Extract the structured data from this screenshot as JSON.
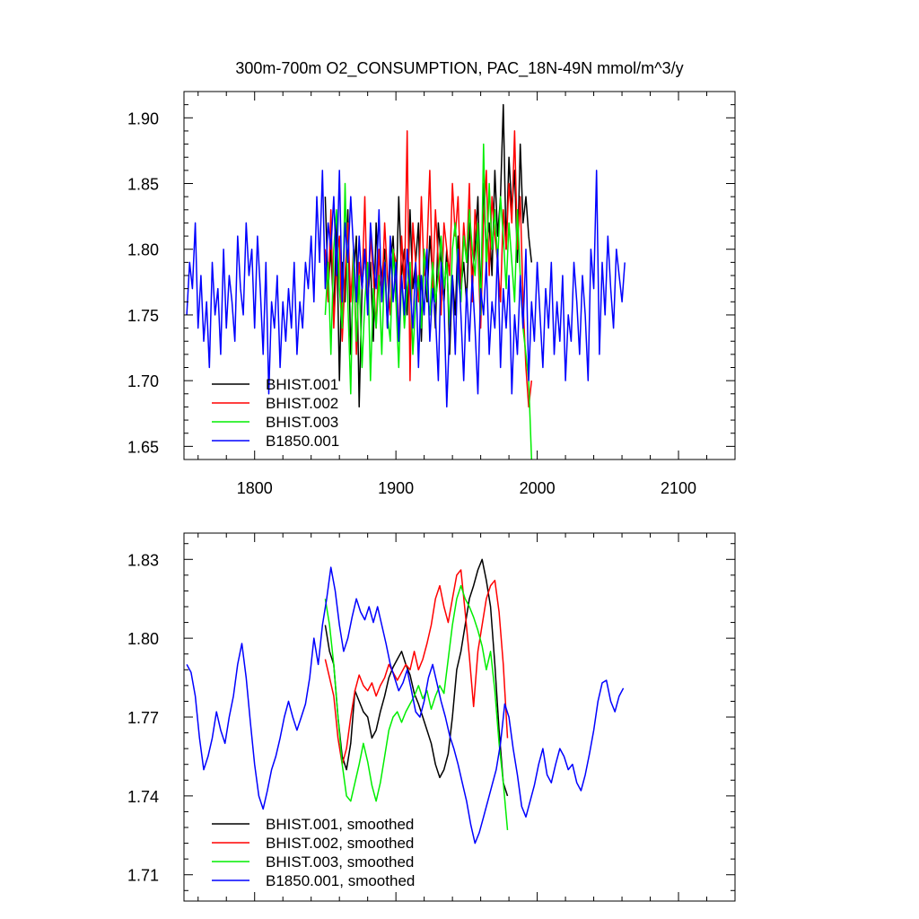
{
  "figure": {
    "title": "300m-700m O2_CONSUMPTION, PAC_18N-49N  mmol/m^3/y"
  },
  "chart_data": [
    {
      "type": "line",
      "title": "300m-700m O2_CONSUMPTION, PAC_18N-49N  mmol/m^3/y",
      "xlabel": "",
      "ylabel": "",
      "xlim": [
        1750,
        2140
      ],
      "ylim": [
        1.64,
        1.92
      ],
      "xticks": [
        1800,
        1900,
        2000,
        2100
      ],
      "xtick_labels": [
        "1800",
        "1900",
        "2000",
        "2100"
      ],
      "yticks": [
        1.65,
        1.7,
        1.75,
        1.8,
        1.85,
        1.9
      ],
      "ytick_labels": [
        "1.65",
        "1.70",
        "1.75",
        "1.80",
        "1.85",
        "1.90"
      ],
      "grid": false,
      "legend_position": "bottom-left",
      "series": [
        {
          "name": "BHIST.001",
          "color": "#000000",
          "x_start": 1850,
          "x_step": 2,
          "values": [
            1.84,
            1.77,
            1.8,
            1.75,
            1.82,
            1.7,
            1.79,
            1.76,
            1.83,
            1.72,
            1.78,
            1.81,
            1.68,
            1.77,
            1.8,
            1.76,
            1.79,
            1.73,
            1.82,
            1.77,
            1.78,
            1.8,
            1.74,
            1.79,
            1.81,
            1.76,
            1.84,
            1.78,
            1.8,
            1.75,
            1.83,
            1.77,
            1.79,
            1.82,
            1.73,
            1.8,
            1.76,
            1.81,
            1.78,
            1.74,
            1.82,
            1.79,
            1.76,
            1.8,
            1.72,
            1.78,
            1.75,
            1.81,
            1.77,
            1.79,
            1.76,
            1.82,
            1.78,
            1.8,
            1.84,
            1.76,
            1.85,
            1.8,
            1.82,
            1.78,
            1.86,
            1.81,
            1.84,
            1.91,
            1.8,
            1.87,
            1.83,
            1.86,
            1.79,
            1.88,
            1.82,
            1.84,
            1.81,
            1.79
          ]
        },
        {
          "name": "BHIST.002",
          "color": "#ff0000",
          "x_start": 1850,
          "x_step": 2,
          "values": [
            1.8,
            1.76,
            1.83,
            1.74,
            1.79,
            1.81,
            1.73,
            1.78,
            1.82,
            1.76,
            1.8,
            1.72,
            1.79,
            1.77,
            1.84,
            1.75,
            1.81,
            1.78,
            1.74,
            1.8,
            1.76,
            1.82,
            1.78,
            1.75,
            1.8,
            1.79,
            1.73,
            1.81,
            1.77,
            1.89,
            1.7,
            1.82,
            1.79,
            1.76,
            1.84,
            1.78,
            1.8,
            1.86,
            1.77,
            1.83,
            1.79,
            1.75,
            1.82,
            1.8,
            1.78,
            1.85,
            1.81,
            1.84,
            1.77,
            1.82,
            1.79,
            1.85,
            1.76,
            1.83,
            1.8,
            1.74,
            1.82,
            1.86,
            1.78,
            1.84,
            1.81,
            1.79,
            1.76,
            1.83,
            1.8,
            1.85,
            1.82,
            1.89,
            1.8,
            1.84,
            1.76,
            1.71,
            1.68,
            1.7
          ]
        },
        {
          "name": "BHIST.003",
          "color": "#00ee00",
          "x_start": 1850,
          "x_step": 2,
          "values": [
            1.75,
            1.79,
            1.72,
            1.8,
            1.83,
            1.77,
            1.74,
            1.85,
            1.76,
            1.69,
            1.8,
            1.73,
            1.78,
            1.71,
            1.76,
            1.79,
            1.7,
            1.77,
            1.74,
            1.78,
            1.72,
            1.79,
            1.75,
            1.73,
            1.8,
            1.76,
            1.71,
            1.78,
            1.74,
            1.77,
            1.79,
            1.72,
            1.76,
            1.78,
            1.74,
            1.8,
            1.77,
            1.75,
            1.79,
            1.76,
            1.78,
            1.81,
            1.77,
            1.79,
            1.74,
            1.8,
            1.82,
            1.78,
            1.76,
            1.81,
            1.79,
            1.83,
            1.8,
            1.78,
            1.82,
            1.75,
            1.88,
            1.78,
            1.85,
            1.8,
            1.83,
            1.79,
            1.84,
            1.81,
            1.77,
            1.82,
            1.79,
            1.76,
            1.83,
            1.78,
            1.74,
            1.72,
            1.7,
            1.64
          ]
        },
        {
          "name": "B1850.001",
          "color": "#0000ff",
          "x_start": 1752,
          "x_step": 2,
          "values": [
            1.75,
            1.79,
            1.77,
            1.82,
            1.74,
            1.78,
            1.73,
            1.76,
            1.71,
            1.79,
            1.75,
            1.77,
            1.72,
            1.8,
            1.74,
            1.78,
            1.76,
            1.73,
            1.81,
            1.77,
            1.75,
            1.82,
            1.78,
            1.8,
            1.74,
            1.81,
            1.77,
            1.72,
            1.79,
            1.69,
            1.76,
            1.74,
            1.78,
            1.71,
            1.76,
            1.73,
            1.77,
            1.74,
            1.79,
            1.72,
            1.76,
            1.74,
            1.79,
            1.77,
            1.81,
            1.76,
            1.84,
            1.79,
            1.86,
            1.77,
            1.82,
            1.8,
            1.84,
            1.78,
            1.86,
            1.76,
            1.82,
            1.79,
            1.84,
            1.8,
            1.76,
            1.81,
            1.77,
            1.8,
            1.75,
            1.82,
            1.79,
            1.77,
            1.83,
            1.76,
            1.79,
            1.74,
            1.81,
            1.76,
            1.79,
            1.73,
            1.78,
            1.75,
            1.8,
            1.77,
            1.74,
            1.79,
            1.71,
            1.78,
            1.75,
            1.8,
            1.73,
            1.77,
            1.75,
            1.7,
            1.79,
            1.76,
            1.68,
            1.74,
            1.78,
            1.72,
            1.8,
            1.75,
            1.7,
            1.77,
            1.73,
            1.78,
            1.74,
            1.69,
            1.77,
            1.75,
            1.79,
            1.72,
            1.76,
            1.74,
            1.8,
            1.71,
            1.77,
            1.74,
            1.78,
            1.69,
            1.75,
            1.72,
            1.78,
            1.74,
            1.8,
            1.7,
            1.76,
            1.73,
            1.79,
            1.75,
            1.71,
            1.77,
            1.74,
            1.79,
            1.72,
            1.76,
            1.73,
            1.78,
            1.7,
            1.75,
            1.73,
            1.79,
            1.76,
            1.72,
            1.78,
            1.75,
            1.7,
            1.8,
            1.77,
            1.86,
            1.72,
            1.79,
            1.75,
            1.81,
            1.77,
            1.74,
            1.8,
            1.78,
            1.76,
            1.79
          ]
        }
      ]
    },
    {
      "type": "line",
      "title": "",
      "xlabel": "",
      "ylabel": "",
      "xlim": [
        1750,
        2140
      ],
      "ylim": [
        1.7,
        1.84
      ],
      "xticks": [
        1800,
        1900,
        2000,
        2100
      ],
      "xtick_labels": [],
      "yticks": [
        1.71,
        1.74,
        1.77,
        1.8,
        1.83
      ],
      "ytick_labels": [
        "1.71",
        "1.74",
        "1.77",
        "1.80",
        "1.83"
      ],
      "grid": false,
      "legend_position": "bottom-left",
      "series": [
        {
          "name": "BHIST.001, smoothed",
          "color": "#000000",
          "x_start": 1850,
          "x_step": 3,
          "values": [
            1.805,
            1.795,
            1.79,
            1.77,
            1.755,
            1.75,
            1.76,
            1.78,
            1.776,
            1.772,
            1.77,
            1.762,
            1.765,
            1.772,
            1.778,
            1.785,
            1.789,
            1.792,
            1.795,
            1.79,
            1.786,
            1.779,
            1.775,
            1.77,
            1.765,
            1.76,
            1.752,
            1.747,
            1.75,
            1.756,
            1.77,
            1.788,
            1.795,
            1.805,
            1.815,
            1.82,
            1.826,
            1.83,
            1.822,
            1.812,
            1.79,
            1.765,
            1.745,
            1.74
          ]
        },
        {
          "name": "BHIST.002, smoothed",
          "color": "#ff0000",
          "x_start": 1850,
          "x_step": 3,
          "values": [
            1.792,
            1.785,
            1.778,
            1.762,
            1.752,
            1.758,
            1.77,
            1.78,
            1.786,
            1.782,
            1.78,
            1.783,
            1.778,
            1.782,
            1.785,
            1.79,
            1.787,
            1.784,
            1.787,
            1.79,
            1.788,
            1.795,
            1.788,
            1.792,
            1.798,
            1.805,
            1.815,
            1.82,
            1.812,
            1.806,
            1.815,
            1.824,
            1.826,
            1.81,
            1.793,
            1.774,
            1.795,
            1.805,
            1.815,
            1.82,
            1.822,
            1.81,
            1.79,
            1.762
          ]
        },
        {
          "name": "BHIST.003, smoothed",
          "color": "#00ee00",
          "x_start": 1850,
          "x_step": 3,
          "values": [
            1.815,
            1.805,
            1.79,
            1.77,
            1.752,
            1.74,
            1.738,
            1.745,
            1.752,
            1.76,
            1.753,
            1.744,
            1.738,
            1.745,
            1.755,
            1.765,
            1.77,
            1.772,
            1.768,
            1.772,
            1.775,
            1.778,
            1.782,
            1.777,
            1.78,
            1.773,
            1.778,
            1.782,
            1.779,
            1.792,
            1.805,
            1.815,
            1.82,
            1.815,
            1.812,
            1.808,
            1.803,
            1.797,
            1.788,
            1.795,
            1.78,
            1.76,
            1.745,
            1.727
          ]
        },
        {
          "name": "B1850.001, smoothed",
          "color": "#0000ff",
          "x_start": 1752,
          "x_step": 3,
          "values": [
            1.79,
            1.787,
            1.778,
            1.762,
            1.75,
            1.755,
            1.762,
            1.772,
            1.765,
            1.76,
            1.77,
            1.778,
            1.79,
            1.798,
            1.785,
            1.768,
            1.752,
            1.74,
            1.735,
            1.742,
            1.75,
            1.755,
            1.762,
            1.77,
            1.776,
            1.77,
            1.765,
            1.77,
            1.775,
            1.785,
            1.8,
            1.79,
            1.805,
            1.815,
            1.827,
            1.818,
            1.805,
            1.795,
            1.8,
            1.808,
            1.815,
            1.81,
            1.807,
            1.812,
            1.806,
            1.812,
            1.805,
            1.798,
            1.79,
            1.785,
            1.78,
            1.783,
            1.788,
            1.78,
            1.772,
            1.77,
            1.776,
            1.785,
            1.79,
            1.783,
            1.776,
            1.77,
            1.763,
            1.758,
            1.752,
            1.745,
            1.738,
            1.729,
            1.722,
            1.726,
            1.732,
            1.738,
            1.744,
            1.75,
            1.76,
            1.775,
            1.77,
            1.758,
            1.748,
            1.736,
            1.732,
            1.738,
            1.744,
            1.752,
            1.758,
            1.748,
            1.745,
            1.752,
            1.758,
            1.755,
            1.75,
            1.752,
            1.745,
            1.742,
            1.748,
            1.756,
            1.765,
            1.776,
            1.783,
            1.784,
            1.776,
            1.772,
            1.778,
            1.781
          ]
        }
      ]
    }
  ]
}
